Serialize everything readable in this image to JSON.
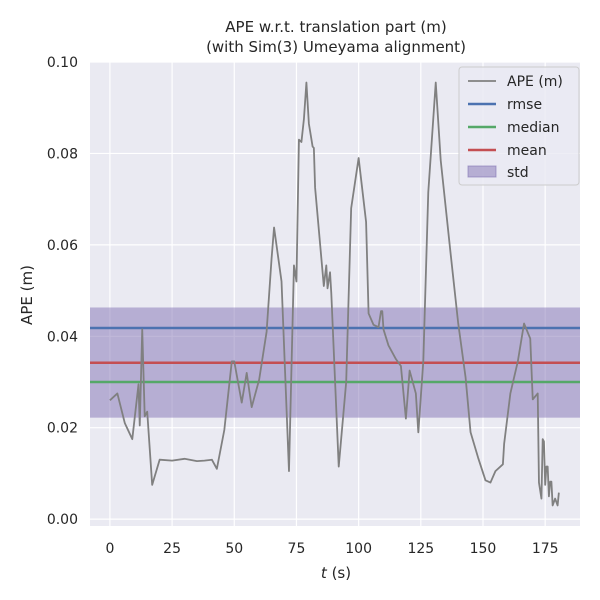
{
  "chart_data": {
    "type": "line",
    "title_lines": [
      "APE w.r.t. translation part (m)",
      "(with Sim(3) Umeyama alignment)"
    ],
    "xlabel_var": "t",
    "xlabel_unit": " (s)",
    "ylabel": "APE (m)",
    "xlim": [
      -8,
      189
    ],
    "ylim": [
      -0.0015,
      0.1
    ],
    "xticks": [
      0,
      25,
      50,
      75,
      100,
      125,
      150,
      175
    ],
    "yticks": [
      0.0,
      0.02,
      0.04,
      0.06,
      0.08,
      0.1
    ],
    "ytick_labels": [
      "0.00",
      "0.02",
      "0.04",
      "0.06",
      "0.08",
      "0.10"
    ],
    "grid": true,
    "legend_position": "top-right",
    "series": [
      {
        "name": "APE (m)",
        "color": "#808080",
        "points": [
          [
            0,
            0.026
          ],
          [
            3,
            0.0275
          ],
          [
            6,
            0.021
          ],
          [
            9,
            0.0175
          ],
          [
            11.5,
            0.0295
          ],
          [
            12,
            0.0205
          ],
          [
            13,
            0.0415
          ],
          [
            14,
            0.0225
          ],
          [
            15,
            0.0235
          ],
          [
            17,
            0.0075
          ],
          [
            20,
            0.013
          ],
          [
            25,
            0.0128
          ],
          [
            30,
            0.0132
          ],
          [
            35,
            0.0127
          ],
          [
            38,
            0.0128
          ],
          [
            41,
            0.013
          ],
          [
            43,
            0.011
          ],
          [
            46,
            0.0195
          ],
          [
            49,
            0.0345
          ],
          [
            50,
            0.0345
          ],
          [
            53,
            0.0255
          ],
          [
            55,
            0.032
          ],
          [
            57,
            0.0245
          ],
          [
            60,
            0.0305
          ],
          [
            63,
            0.041
          ],
          [
            65,
            0.057
          ],
          [
            66,
            0.0638
          ],
          [
            69,
            0.052
          ],
          [
            72,
            0.0105
          ],
          [
            74,
            0.0555
          ],
          [
            75,
            0.052
          ],
          [
            76,
            0.083
          ],
          [
            77,
            0.0825
          ],
          [
            78,
            0.0875
          ],
          [
            79,
            0.0955
          ],
          [
            80,
            0.0865
          ],
          [
            81.5,
            0.0815
          ],
          [
            82,
            0.0812
          ],
          [
            82.5,
            0.0725
          ],
          [
            86,
            0.051
          ],
          [
            87,
            0.0555
          ],
          [
            87.5,
            0.0505
          ],
          [
            88.5,
            0.054
          ],
          [
            89,
            0.0495
          ],
          [
            92,
            0.0115
          ],
          [
            95,
            0.03
          ],
          [
            97,
            0.068
          ],
          [
            100,
            0.079
          ],
          [
            103,
            0.065
          ],
          [
            104,
            0.045
          ],
          [
            106,
            0.0425
          ],
          [
            108,
            0.042
          ],
          [
            109,
            0.0455
          ],
          [
            109.5,
            0.0455
          ],
          [
            110,
            0.0415
          ],
          [
            112,
            0.038
          ],
          [
            115,
            0.035
          ],
          [
            117,
            0.0335
          ],
          [
            119,
            0.022
          ],
          [
            120.5,
            0.0325
          ],
          [
            123,
            0.0275
          ],
          [
            124,
            0.019
          ],
          [
            126,
            0.0345
          ],
          [
            128,
            0.0715
          ],
          [
            131,
            0.0955
          ],
          [
            133,
            0.0785
          ],
          [
            137,
            0.058
          ],
          [
            140,
            0.043
          ],
          [
            143,
            0.031
          ],
          [
            145,
            0.019
          ],
          [
            148,
            0.0135
          ],
          [
            151,
            0.0085
          ],
          [
            153,
            0.008
          ],
          [
            155,
            0.0105
          ],
          [
            158,
            0.012
          ],
          [
            158.5,
            0.0165
          ],
          [
            161,
            0.0275
          ],
          [
            164,
            0.0345
          ],
          [
            166.5,
            0.0428
          ],
          [
            169,
            0.0395
          ],
          [
            170,
            0.0262
          ],
          [
            172,
            0.0275
          ],
          [
            172.5,
            0.008
          ],
          [
            173.5,
            0.0045
          ],
          [
            174,
            0.0175
          ],
          [
            174.5,
            0.017
          ],
          [
            175,
            0.0075
          ],
          [
            175.5,
            0.0115
          ],
          [
            176,
            0.0115
          ],
          [
            176.5,
            0.005
          ],
          [
            177,
            0.0082
          ],
          [
            177.5,
            0.0082
          ],
          [
            178,
            0.003
          ],
          [
            179,
            0.0045
          ],
          [
            180,
            0.003
          ],
          [
            180.5,
            0.0058
          ]
        ]
      }
    ],
    "hlines": [
      {
        "name": "rmse",
        "color": "#4c72b0",
        "value": 0.0418
      },
      {
        "name": "median",
        "color": "#55a868",
        "value": 0.03
      },
      {
        "name": "mean",
        "color": "#c44e52",
        "value": 0.0342
      }
    ],
    "bands": [
      {
        "name": "std",
        "color": "#8172b3",
        "opacity": 0.5,
        "from": 0.0222,
        "to": 0.0463
      }
    ]
  }
}
